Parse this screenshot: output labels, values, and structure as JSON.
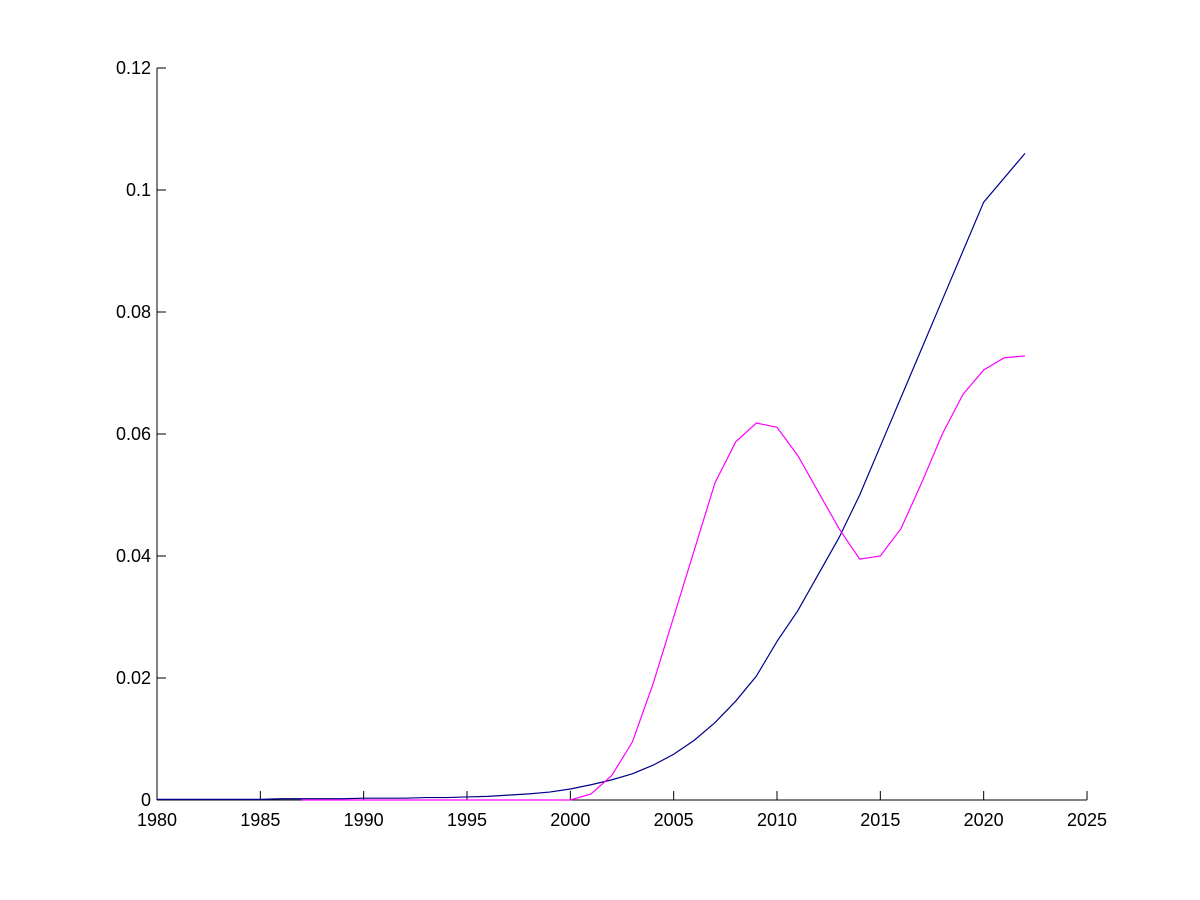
{
  "chart_data": {
    "type": "line",
    "x": [
      1980,
      1981,
      1982,
      1983,
      1984,
      1985,
      1986,
      1987,
      1988,
      1989,
      1990,
      1991,
      1992,
      1993,
      1994,
      1995,
      1996,
      1997,
      1998,
      1999,
      2000,
      2001,
      2002,
      2003,
      2004,
      2005,
      2006,
      2007,
      2008,
      2009,
      2010,
      2011,
      2012,
      2013,
      2014,
      2015,
      2016,
      2017,
      2018,
      2019,
      2020,
      2021,
      2022
    ],
    "series": [
      {
        "color": "#00008b",
        "values": [
          0.0001,
          0.0001,
          0.0001,
          0.0001,
          0.0001,
          0.0001,
          0.0002,
          0.0002,
          0.0002,
          0.0002,
          0.0003,
          0.0003,
          0.0003,
          0.0004,
          0.0004,
          0.0005,
          0.0006,
          0.0008,
          0.001,
          0.0013,
          0.0018,
          0.0025,
          0.0033,
          0.0043,
          0.0057,
          0.0075,
          0.0098,
          0.0127,
          0.0162,
          0.0203,
          0.026,
          0.031,
          0.037,
          0.043,
          0.05,
          0.058,
          0.066,
          0.074,
          0.082,
          0.09,
          0.098,
          0.102,
          0.106
        ]
      },
      {
        "color": "#ff00ff",
        "values": [
          null,
          null,
          null,
          null,
          null,
          null,
          null,
          0,
          0,
          0,
          0,
          0,
          0,
          0,
          0,
          0,
          0,
          0,
          0,
          0,
          0,
          0.001,
          0.004,
          0.0095,
          0.019,
          0.03,
          0.041,
          0.052,
          0.0587,
          0.0618,
          0.0611,
          0.0565,
          0.0505,
          0.0445,
          0.0395,
          0.04,
          0.0445,
          0.052,
          0.06,
          0.0665,
          0.0705,
          0.0725,
          0.0728
        ]
      }
    ],
    "xlim": [
      1980,
      2025
    ],
    "xticks": [
      1980,
      1985,
      1990,
      1995,
      2000,
      2005,
      2010,
      2015,
      2020,
      2025
    ],
    "ylim": [
      0,
      0.12
    ],
    "yticks": [
      0,
      0.02,
      0.04,
      0.06,
      0.08,
      0.1,
      0.12
    ]
  }
}
